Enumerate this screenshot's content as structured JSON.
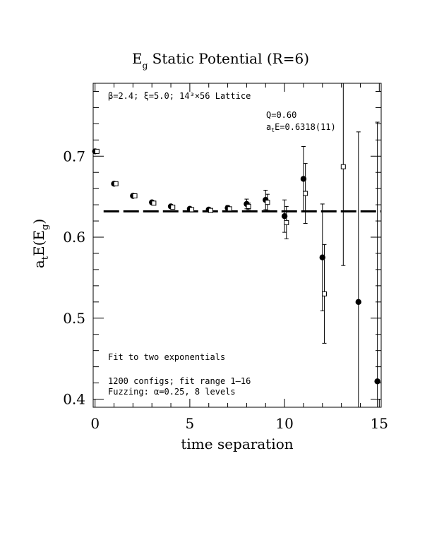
{
  "chart_data": {
    "type": "scatter",
    "title_main": "E",
    "title_sub": "g",
    "title_rest": " Static Potential (R=6)",
    "xlabel": "time separation",
    "ylabel_a": "a",
    "ylabel_t": "t",
    "ylabel_E": "E(E",
    "ylabel_g": "g",
    "ylabel_close": ")",
    "xlim": [
      -0.1,
      15.1
    ],
    "ylim": [
      0.39,
      0.79
    ],
    "x_ticks": [
      0,
      5,
      10,
      15
    ],
    "x_tick_labels": [
      "0",
      "5",
      "10",
      "15"
    ],
    "y_ticks": [
      0.4,
      0.5,
      0.6,
      0.7
    ],
    "y_tick_labels": [
      "0.4",
      "0.5",
      "0.6",
      "0.7"
    ],
    "fit_value": 0.6318,
    "annotations": {
      "lattice": "β=2.4; ξ=5.0; 14³×56 Lattice",
      "q": "Q=0.60",
      "ate_a": "a",
      "ate_t": "t",
      "ate_rest": "E=0.6318(11)",
      "fit_type": "Fit to two exponentials",
      "configs": "1200 configs; fit range 1–16",
      "fuzzing": "Fuzzing: α=0.25, 8 levels"
    },
    "series": [
      {
        "marker": "filled-circle",
        "points": [
          {
            "x": 0,
            "y": 0.706,
            "err": 0.002
          },
          {
            "x": 1,
            "y": 0.666,
            "err": 0.002
          },
          {
            "x": 2,
            "y": 0.651,
            "err": 0.002
          },
          {
            "x": 3,
            "y": 0.643,
            "err": 0.002
          },
          {
            "x": 4,
            "y": 0.638,
            "err": 0.002
          },
          {
            "x": 5,
            "y": 0.635,
            "err": 0.002
          },
          {
            "x": 6,
            "y": 0.634,
            "err": 0.002
          },
          {
            "x": 7,
            "y": 0.636,
            "err": 0.003
          },
          {
            "x": 8,
            "y": 0.641,
            "err": 0.006
          },
          {
            "x": 9,
            "y": 0.646,
            "err": 0.012
          },
          {
            "x": 10,
            "y": 0.626,
            "err": 0.02
          },
          {
            "x": 11,
            "y": 0.672,
            "err": 0.04
          },
          {
            "x": 12,
            "y": 0.575,
            "err": 0.066
          },
          {
            "x": 13.9,
            "y": 0.52,
            "err": 0.21
          },
          {
            "x": 14.9,
            "y": 0.422,
            "err": 0.32
          }
        ]
      },
      {
        "marker": "open-square",
        "points": [
          {
            "x": 0.1,
            "y": 0.706,
            "err": 0.002
          },
          {
            "x": 1.1,
            "y": 0.666,
            "err": 0.002
          },
          {
            "x": 2.1,
            "y": 0.651,
            "err": 0.002
          },
          {
            "x": 3.1,
            "y": 0.642,
            "err": 0.002
          },
          {
            "x": 4.1,
            "y": 0.637,
            "err": 0.002
          },
          {
            "x": 5.1,
            "y": 0.634,
            "err": 0.002
          },
          {
            "x": 6.1,
            "y": 0.633,
            "err": 0.002
          },
          {
            "x": 7.1,
            "y": 0.635,
            "err": 0.002
          },
          {
            "x": 8.1,
            "y": 0.638,
            "err": 0.004
          },
          {
            "x": 9.1,
            "y": 0.643,
            "err": 0.01
          },
          {
            "x": 10.1,
            "y": 0.618,
            "err": 0.02
          },
          {
            "x": 11.1,
            "y": 0.654,
            "err": 0.037
          },
          {
            "x": 12.1,
            "y": 0.53,
            "err": 0.061
          },
          {
            "x": 13.1,
            "y": 0.687,
            "err": 0.122
          }
        ]
      }
    ]
  }
}
